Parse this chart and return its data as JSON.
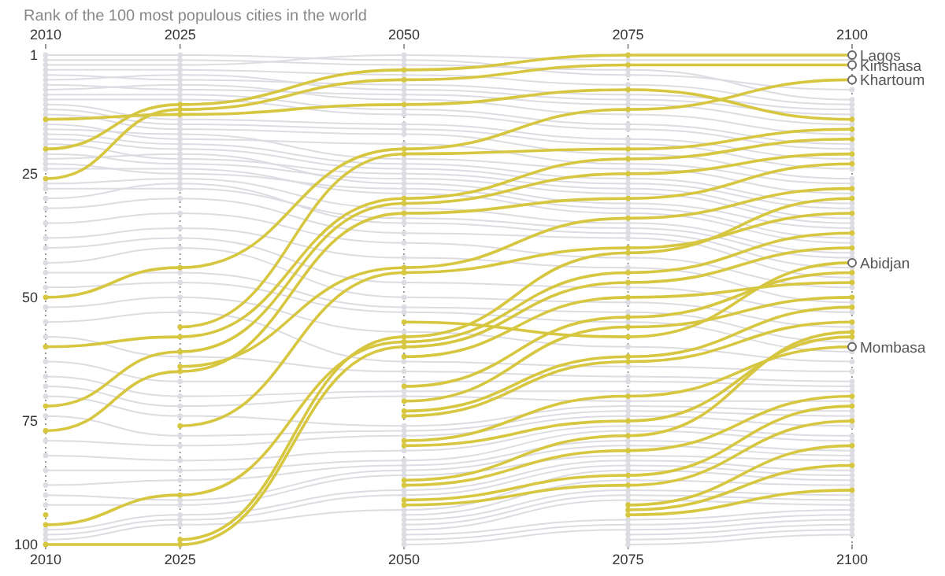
{
  "chart_data": {
    "type": "line",
    "title": "Rank of the 100 most populous cities in the world",
    "x": [
      2010,
      2025,
      2050,
      2075,
      2100
    ],
    "xlim": [
      2010,
      2100
    ],
    "xticks": [
      2010,
      2025,
      2050,
      2075,
      2100
    ],
    "x2lim": [
      2010,
      2100
    ],
    "x2ticks": [
      2010,
      2025,
      2050,
      2075,
      2100
    ],
    "ylim": [
      100,
      1
    ],
    "yticks": [
      1,
      25,
      50,
      75,
      100
    ],
    "grid": "x",
    "marker": "circle",
    "line_style": "solid",
    "series": [
      {
        "color": "#dcdce2",
        "values": [
          1,
          1,
          2,
          5,
          8
        ]
      },
      {
        "color": "#dcdce2",
        "values": [
          2,
          2,
          3,
          4,
          10
        ]
      },
      {
        "color": "#dcdce2",
        "values": [
          3,
          3,
          1,
          2,
          2
        ]
      },
      {
        "color": "#dcdce2",
        "values": [
          4,
          4,
          5,
          7,
          11
        ]
      },
      {
        "color": "#dcdce2",
        "values": [
          5,
          6,
          7,
          9,
          12
        ]
      },
      {
        "color": "#dcdce2",
        "values": [
          6,
          5,
          8,
          10,
          13
        ]
      },
      {
        "color": "#dcdce2",
        "values": [
          7,
          8,
          9,
          11,
          15
        ]
      },
      {
        "color": "#dcdce2",
        "values": [
          8,
          7,
          10,
          13,
          17
        ]
      },
      {
        "color": "#dcdce2",
        "values": [
          9,
          9,
          12,
          15,
          19
        ]
      },
      {
        "color": "#dcdce2",
        "values": [
          10,
          10,
          13,
          16,
          20
        ]
      },
      {
        "color": "#dcdce2",
        "values": [
          11,
          14,
          15,
          18,
          22
        ]
      },
      {
        "color": "#dcdce2",
        "values": [
          12,
          15,
          16,
          19,
          24
        ]
      },
      {
        "color": "#dcdce2",
        "values": [
          13,
          16,
          17,
          21,
          26
        ]
      },
      {
        "color": "#dcdce2",
        "values": [
          15,
          18,
          19,
          23,
          27
        ]
      },
      {
        "color": "#dcdce2",
        "values": [
          16,
          17,
          22,
          24,
          29
        ]
      },
      {
        "color": "#dcdce2",
        "values": [
          17,
          19,
          23,
          26,
          31
        ]
      },
      {
        "color": "#dcdce2",
        "values": [
          18,
          20,
          24,
          27,
          32
        ]
      },
      {
        "color": "#dcdce2",
        "values": [
          19,
          22,
          25,
          28,
          34
        ]
      },
      {
        "color": "#dcdce2",
        "values": [
          21,
          23,
          26,
          29,
          35
        ]
      },
      {
        "color": "#dcdce2",
        "values": [
          22,
          21,
          27,
          31,
          36
        ]
      },
      {
        "color": "#dcdce2",
        "values": [
          23,
          25,
          28,
          32,
          38
        ]
      },
      {
        "color": "#dcdce2",
        "values": [
          24,
          24,
          29,
          33,
          39
        ]
      },
      {
        "color": "#dcdce2",
        "values": [
          27,
          26,
          32,
          35,
          41
        ]
      },
      {
        "color": "#dcdce2",
        "values": [
          28,
          28,
          34,
          36,
          42
        ]
      },
      {
        "color": "#dcdce2",
        "values": [
          30,
          27,
          35,
          37,
          44
        ]
      },
      {
        "color": "#dcdce2",
        "values": [
          32,
          30,
          37,
          38,
          46
        ]
      },
      {
        "color": "#dcdce2",
        "values": [
          35,
          33,
          39,
          42,
          48
        ]
      },
      {
        "color": "#dcdce2",
        "values": [
          38,
          36,
          42,
          44,
          51
        ]
      },
      {
        "color": "#dcdce2",
        "values": [
          40,
          38,
          47,
          48,
          53
        ]
      },
      {
        "color": "#dcdce2",
        "values": [
          43,
          40,
          50,
          51,
          56
        ]
      },
      {
        "color": "#dcdce2",
        "values": [
          45,
          45,
          52,
          53,
          59
        ]
      },
      {
        "color": "#dcdce2",
        "values": [
          48,
          47,
          53,
          55,
          61
        ]
      },
      {
        "color": "#dcdce2",
        "values": [
          52,
          50,
          57,
          60,
          63
        ]
      },
      {
        "color": "#dcdce2",
        "values": [
          55,
          53,
          63,
          64,
          65
        ]
      },
      {
        "color": "#dcdce2",
        "values": [
          58,
          62,
          65,
          66,
          67
        ]
      },
      {
        "color": "#dcdce2",
        "values": [
          63,
          67,
          67,
          67,
          68
        ]
      },
      {
        "color": "#dcdce2",
        "values": [
          66,
          70,
          69,
          69,
          69
        ]
      },
      {
        "color": "#dcdce2",
        "values": [
          68,
          72,
          70,
          71,
          71
        ]
      },
      {
        "color": "#dcdce2",
        "values": [
          70,
          74,
          76,
          72,
          73
        ]
      },
      {
        "color": "#dcdce2",
        "values": [
          74,
          78,
          77,
          73,
          74
        ]
      },
      {
        "color": "#dcdce2",
        "values": [
          79,
          80,
          78,
          74,
          76
        ]
      },
      {
        "color": "#dcdce2",
        "values": [
          82,
          83,
          81,
          76,
          78
        ]
      },
      {
        "color": "#dcdce2",
        "values": [
          85,
          85,
          83,
          77,
          79
        ]
      },
      {
        "color": "#dcdce2",
        "values": [
          88,
          87,
          84,
          79,
          81
        ]
      },
      {
        "color": "#dcdce2",
        "values": [
          90,
          91,
          85,
          80,
          82
        ]
      },
      {
        "color": "#dcdce2",
        "values": [
          92,
          92,
          86,
          82,
          83
        ]
      },
      {
        "color": "#dcdce2",
        "values": [
          97,
          94,
          89,
          83,
          85
        ]
      },
      {
        "color": "#dcdce2",
        "values": [
          98,
          95,
          90,
          84,
          86
        ]
      },
      {
        "color": "#dcdce2",
        "values": [
          99,
          96,
          93,
          85,
          87
        ]
      },
      {
        "color": "#dcdce2",
        "values": [
          null,
          null,
          94,
          87,
          88
        ]
      },
      {
        "color": "#dcdce2",
        "values": [
          null,
          null,
          95,
          89,
          90
        ]
      },
      {
        "color": "#dcdce2",
        "values": [
          null,
          null,
          96,
          90,
          91
        ]
      },
      {
        "color": "#dcdce2",
        "values": [
          null,
          null,
          97,
          91,
          92
        ]
      },
      {
        "color": "#dcdce2",
        "values": [
          null,
          null,
          98,
          95,
          93
        ]
      },
      {
        "color": "#dcdce2",
        "values": [
          null,
          null,
          99,
          96,
          94
        ]
      },
      {
        "color": "#dcdce2",
        "values": [
          null,
          null,
          100,
          97,
          95
        ]
      },
      {
        "color": "#dcdce2",
        "values": [
          null,
          null,
          null,
          98,
          96
        ]
      },
      {
        "color": "#dcdce2",
        "values": [
          null,
          null,
          null,
          99,
          97
        ]
      },
      {
        "color": "#dcdce2",
        "values": [
          null,
          null,
          null,
          100,
          98
        ]
      },
      {
        "name": "Lagos",
        "color": "#d6c640",
        "values": [
          20,
          11,
          4,
          1,
          1
        ]
      },
      {
        "name": "Kinshasa",
        "color": "#d6c640",
        "values": [
          26,
          12,
          6,
          3,
          3
        ]
      },
      {
        "name": "Khartoum",
        "color": "#d6c640",
        "values": [
          50,
          44,
          20,
          12,
          6
        ]
      },
      {
        "color": "#d6c640",
        "values": [
          null,
          56,
          21,
          20,
          16
        ]
      },
      {
        "color": "#d6c640",
        "values": [
          60,
          58,
          30,
          22,
          18
        ]
      },
      {
        "color": "#d6c640",
        "values": [
          72,
          61,
          31,
          25,
          21
        ]
      },
      {
        "color": "#d6c640",
        "values": [
          77,
          65,
          33,
          30,
          23
        ]
      },
      {
        "color": "#d6c640",
        "values": [
          null,
          64,
          44,
          34,
          28
        ]
      },
      {
        "color": "#d6c640",
        "values": [
          null,
          76,
          45,
          40,
          33
        ]
      },
      {
        "color": "#d6c640",
        "values": [
          null,
          99,
          58,
          41,
          30
        ]
      },
      {
        "color": "#d6c640",
        "values": [
          96,
          90,
          59,
          45,
          37
        ]
      },
      {
        "color": "#d6c640",
        "values": [
          100,
          100,
          60,
          47,
          40
        ]
      },
      {
        "name": "Abidjan",
        "color": "#d6c640",
        "values": [
          null,
          null,
          55,
          58,
          43
        ]
      },
      {
        "color": "#d6c640",
        "values": [
          null,
          null,
          62,
          50,
          47
        ]
      },
      {
        "color": "#d6c640",
        "values": [
          null,
          null,
          68,
          54,
          45
        ]
      },
      {
        "color": "#d6c640",
        "values": [
          null,
          null,
          71,
          56,
          50
        ]
      },
      {
        "color": "#d6c640",
        "values": [
          null,
          null,
          73,
          62,
          52
        ]
      },
      {
        "color": "#d6c640",
        "values": [
          null,
          null,
          74,
          63,
          55
        ]
      },
      {
        "name": "Mombasa",
        "color": "#d6c640",
        "values": [
          null,
          null,
          79,
          70,
          60
        ]
      },
      {
        "color": "#d6c640",
        "values": [
          null,
          null,
          80,
          75,
          58
        ]
      },
      {
        "color": "#d6c640",
        "values": [
          null,
          null,
          87,
          78,
          57
        ]
      },
      {
        "color": "#d6c640",
        "values": [
          null,
          null,
          88,
          81,
          70
        ]
      },
      {
        "color": "#d6c640",
        "values": [
          null,
          null,
          91,
          86,
          72
        ]
      },
      {
        "color": "#d6c640",
        "values": [
          null,
          null,
          92,
          88,
          75
        ]
      },
      {
        "color": "#d6c640",
        "values": [
          null,
          null,
          null,
          92,
          80
        ]
      },
      {
        "color": "#d6c640",
        "values": [
          null,
          null,
          null,
          93,
          84
        ]
      },
      {
        "color": "#d6c640",
        "values": [
          null,
          null,
          null,
          94,
          89
        ]
      },
      {
        "color": "#d6c640",
        "values": [
          94,
          null,
          null,
          null,
          null
        ]
      },
      {
        "color": "#d6c640",
        "values": [
          14,
          13,
          11,
          8,
          14
        ]
      }
    ]
  }
}
